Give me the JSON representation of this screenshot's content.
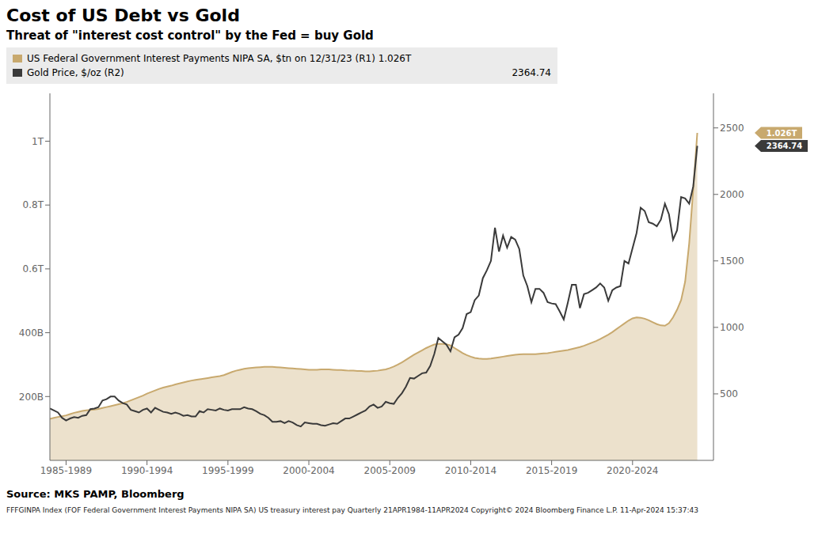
{
  "chart_data": {
    "type": "line",
    "title": "Cost of US Debt vs Gold",
    "subtitle": "Threat of \"interest cost control\" by the Fed = buy Gold",
    "source": "Source: MKS PAMP, Bloomberg",
    "footer": "FFFGINPA Index (FOF Federal Government Interest Payments NIPA SA) US treasury interest pay  Quarterly 21APR1984-11APR2024    Copyright© 2024 Bloomberg Finance L.P.    11-Apr-2024 15:37:43",
    "legend": "top",
    "grid": false,
    "xlim": [
      1984.0,
      2025.0
    ],
    "xticks": [
      {
        "value": 1985,
        "label": "1985-1989"
      },
      {
        "value": 1990,
        "label": "1990-1994"
      },
      {
        "value": 1995,
        "label": "1995-1999"
      },
      {
        "value": 2000,
        "label": "2000-2004"
      },
      {
        "value": 2005,
        "label": "2005-2009"
      },
      {
        "value": 2010,
        "label": "2010-2014"
      },
      {
        "value": 2015,
        "label": "2015-2019"
      },
      {
        "value": 2020,
        "label": "2020-2024"
      }
    ],
    "ylim": [
      0,
      1150000000000
    ],
    "yticks": [
      {
        "value": 200000000000,
        "label": "200B"
      },
      {
        "value": 400000000000,
        "label": "400B"
      },
      {
        "value": 600000000000,
        "label": "0.6T"
      },
      {
        "value": 800000000000,
        "label": "0.8T"
      },
      {
        "value": 1000000000000,
        "label": "1T"
      }
    ],
    "y2lim": [
      0,
      2760
    ],
    "y2ticks": [
      500,
      1000,
      1500,
      2000,
      2500
    ],
    "x": [
      1984.0,
      1984.25,
      1984.5,
      1984.75,
      1985.0,
      1985.25,
      1985.5,
      1985.75,
      1986.0,
      1986.25,
      1986.5,
      1986.75,
      1987.0,
      1987.25,
      1987.5,
      1987.75,
      1988.0,
      1988.25,
      1988.5,
      1988.75,
      1989.0,
      1989.25,
      1989.5,
      1989.75,
      1990.0,
      1990.25,
      1990.5,
      1990.75,
      1991.0,
      1991.25,
      1991.5,
      1991.75,
      1992.0,
      1992.25,
      1992.5,
      1992.75,
      1993.0,
      1993.25,
      1993.5,
      1993.75,
      1994.0,
      1994.25,
      1994.5,
      1994.75,
      1995.0,
      1995.25,
      1995.5,
      1995.75,
      1996.0,
      1996.25,
      1996.5,
      1996.75,
      1997.0,
      1997.25,
      1997.5,
      1997.75,
      1998.0,
      1998.25,
      1998.5,
      1998.75,
      1999.0,
      1999.25,
      1999.5,
      1999.75,
      2000.0,
      2000.25,
      2000.5,
      2000.75,
      2001.0,
      2001.25,
      2001.5,
      2001.75,
      2002.0,
      2002.25,
      2002.5,
      2002.75,
      2003.0,
      2003.25,
      2003.5,
      2003.75,
      2004.0,
      2004.25,
      2004.5,
      2004.75,
      2005.0,
      2005.25,
      2005.5,
      2005.75,
      2006.0,
      2006.25,
      2006.5,
      2006.75,
      2007.0,
      2007.25,
      2007.5,
      2007.75,
      2008.0,
      2008.25,
      2008.5,
      2008.75,
      2009.0,
      2009.25,
      2009.5,
      2009.75,
      2010.0,
      2010.25,
      2010.5,
      2010.75,
      2011.0,
      2011.25,
      2011.5,
      2011.75,
      2012.0,
      2012.25,
      2012.5,
      2012.75,
      2013.0,
      2013.25,
      2013.5,
      2013.75,
      2014.0,
      2014.25,
      2014.5,
      2014.75,
      2015.0,
      2015.25,
      2015.5,
      2015.75,
      2016.0,
      2016.25,
      2016.5,
      2016.75,
      2017.0,
      2017.25,
      2017.5,
      2017.75,
      2018.0,
      2018.25,
      2018.5,
      2018.75,
      2019.0,
      2019.25,
      2019.5,
      2019.75,
      2020.0,
      2020.25,
      2020.5,
      2020.75,
      2021.0,
      2021.25,
      2021.5,
      2021.75,
      2022.0,
      2022.25,
      2022.5,
      2022.75,
      2023.0,
      2023.25,
      2023.5,
      2023.75,
      2024.0
    ],
    "series": [
      {
        "name": "US Federal Government Interest Payments NIPA SA, $tn  on 12/31/23 (R1) 1.026T",
        "color": "#C8A96E",
        "type": "area",
        "values": [
          130000000000,
          133000000000,
          136000000000,
          138000000000,
          141000000000,
          145000000000,
          149000000000,
          152000000000,
          155000000000,
          157000000000,
          158000000000,
          159000000000,
          161000000000,
          164000000000,
          167000000000,
          170000000000,
          173000000000,
          176000000000,
          179000000000,
          183000000000,
          188000000000,
          193000000000,
          198000000000,
          203000000000,
          209000000000,
          214000000000,
          219000000000,
          224000000000,
          228000000000,
          231000000000,
          234000000000,
          238000000000,
          241000000000,
          244000000000,
          247000000000,
          250000000000,
          252000000000,
          254000000000,
          256000000000,
          258000000000,
          260000000000,
          262000000000,
          264000000000,
          267000000000,
          272000000000,
          277000000000,
          281000000000,
          284000000000,
          287000000000,
          289000000000,
          290000000000,
          291000000000,
          292000000000,
          293000000000,
          293000000000,
          293000000000,
          292000000000,
          291000000000,
          290000000000,
          289000000000,
          288000000000,
          287000000000,
          286000000000,
          285000000000,
          284000000000,
          284000000000,
          284000000000,
          285000000000,
          285000000000,
          285000000000,
          284000000000,
          283000000000,
          283000000000,
          282000000000,
          281000000000,
          281000000000,
          280000000000,
          280000000000,
          279000000000,
          279000000000,
          280000000000,
          281000000000,
          283000000000,
          285000000000,
          289000000000,
          294000000000,
          300000000000,
          307000000000,
          315000000000,
          323000000000,
          331000000000,
          338000000000,
          345000000000,
          352000000000,
          358000000000,
          363000000000,
          365000000000,
          365000000000,
          364000000000,
          360000000000,
          352000000000,
          344000000000,
          336000000000,
          330000000000,
          325000000000,
          321000000000,
          319000000000,
          318000000000,
          318000000000,
          319000000000,
          321000000000,
          323000000000,
          325000000000,
          327000000000,
          329000000000,
          331000000000,
          332000000000,
          333000000000,
          333000000000,
          333000000000,
          333000000000,
          334000000000,
          335000000000,
          336000000000,
          338000000000,
          340000000000,
          342000000000,
          344000000000,
          346000000000,
          349000000000,
          352000000000,
          355000000000,
          359000000000,
          364000000000,
          369000000000,
          374000000000,
          380000000000,
          387000000000,
          394000000000,
          402000000000,
          411000000000,
          420000000000,
          429000000000,
          438000000000,
          445000000000,
          448000000000,
          447000000000,
          444000000000,
          439000000000,
          433000000000,
          427000000000,
          423000000000,
          422000000000,
          430000000000,
          448000000000,
          472000000000,
          502000000000,
          560000000000,
          680000000000,
          850000000000,
          1026000000000
        ]
      },
      {
        "name": "Gold Price, $/oz (R2)",
        "color": "#3A3A3A",
        "type": "line",
        "axis": "y2",
        "legend_value": "2364.74",
        "values": [
          390,
          375,
          360,
          320,
          300,
          315,
          325,
          320,
          335,
          340,
          385,
          390,
          400,
          450,
          460,
          480,
          480,
          450,
          430,
          420,
          380,
          370,
          360,
          380,
          390,
          360,
          395,
          380,
          365,
          360,
          350,
          360,
          350,
          335,
          340,
          330,
          330,
          370,
          360,
          385,
          380,
          375,
          390,
          380,
          375,
          385,
          385,
          385,
          400,
          390,
          385,
          370,
          350,
          340,
          320,
          290,
          290,
          295,
          280,
          295,
          285,
          265,
          255,
          285,
          280,
          275,
          275,
          265,
          260,
          270,
          280,
          275,
          295,
          315,
          315,
          330,
          345,
          360,
          375,
          405,
          420,
          395,
          405,
          440,
          430,
          425,
          470,
          505,
          555,
          620,
          615,
          635,
          655,
          660,
          710,
          800,
          920,
          895,
          870,
          820,
          925,
          945,
          995,
          1100,
          1115,
          1205,
          1240,
          1370,
          1430,
          1500,
          1750,
          1570,
          1690,
          1600,
          1680,
          1660,
          1590,
          1390,
          1310,
          1190,
          1290,
          1290,
          1260,
          1190,
          1180,
          1175,
          1120,
          1060,
          1185,
          1320,
          1320,
          1145,
          1250,
          1260,
          1280,
          1300,
          1330,
          1300,
          1200,
          1280,
          1300,
          1310,
          1500,
          1480,
          1595,
          1710,
          1900,
          1875,
          1790,
          1780,
          1760,
          1810,
          1930,
          1850,
          1660,
          1730,
          1980,
          1970,
          1930,
          2060,
          2364.74
        ]
      }
    ],
    "annotations": [
      {
        "text": "1.026T",
        "x": 2025.0,
        "y": 1026000000000,
        "axis": "y",
        "color": "#C8A96E"
      },
      {
        "text": "2364.74",
        "x": 2025.0,
        "y": 2364.74,
        "axis": "y2",
        "color": "#3A3A3A"
      }
    ]
  }
}
